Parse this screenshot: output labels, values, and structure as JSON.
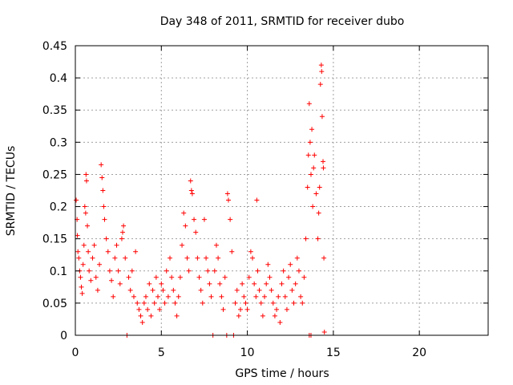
{
  "chart_data": {
    "type": "scatter",
    "title": "Day 348 of 2011, SRMTID for receiver dubo",
    "xlabel": "GPS time / hours",
    "ylabel": "SRMTID / TECUs",
    "xlim": [
      0,
      24
    ],
    "ylim": [
      0,
      0.45
    ],
    "xticks": [
      0,
      5,
      10,
      15,
      20
    ],
    "xtick_labels": [
      "0",
      "5",
      "10",
      "15",
      "20"
    ],
    "yticks": [
      0,
      0.05,
      0.1,
      0.15,
      0.2,
      0.25,
      0.3,
      0.35,
      0.4,
      0.45
    ],
    "ytick_labels": [
      "0",
      "0.05",
      "0.1",
      "0.15",
      "0.2",
      "0.25",
      "0.3",
      "0.35",
      "0.4",
      "0.45"
    ],
    "grid": true,
    "marker": "+",
    "colors": {
      "points": "#ff0000",
      "grid": "#a0a0a0",
      "axes": "#000000"
    },
    "series": [
      {
        "name": "SRMTID",
        "points": [
          [
            0.05,
            0.21
          ],
          [
            0.1,
            0.18
          ],
          [
            0.12,
            0.155
          ],
          [
            0.15,
            0.13
          ],
          [
            0.2,
            0.12
          ],
          [
            0.25,
            0.1
          ],
          [
            0.3,
            0.09
          ],
          [
            0.35,
            0.075
          ],
          [
            0.4,
            0.065
          ],
          [
            0.45,
            0.11
          ],
          [
            0.5,
            0.14
          ],
          [
            0.55,
            0.2
          ],
          [
            0.6,
            0.19
          ],
          [
            0.62,
            0.25
          ],
          [
            0.65,
            0.24
          ],
          [
            0.7,
            0.17
          ],
          [
            0.75,
            0.13
          ],
          [
            0.8,
            0.1
          ],
          [
            0.9,
            0.085
          ],
          [
            1.0,
            0.12
          ],
          [
            1.1,
            0.14
          ],
          [
            1.2,
            0.09
          ],
          [
            1.3,
            0.07
          ],
          [
            1.4,
            0.11
          ],
          [
            1.5,
            0.265
          ],
          [
            1.55,
            0.245
          ],
          [
            1.6,
            0.225
          ],
          [
            1.65,
            0.2
          ],
          [
            1.7,
            0.18
          ],
          [
            1.8,
            0.15
          ],
          [
            1.9,
            0.13
          ],
          [
            2.0,
            0.1
          ],
          [
            2.1,
            0.085
          ],
          [
            2.2,
            0.06
          ],
          [
            2.3,
            0.12
          ],
          [
            2.4,
            0.14
          ],
          [
            2.5,
            0.1
          ],
          [
            2.6,
            0.08
          ],
          [
            2.7,
            0.15
          ],
          [
            2.75,
            0.16
          ],
          [
            2.8,
            0.17
          ],
          [
            2.9,
            0.12
          ],
          [
            3.0,
            0.0
          ],
          [
            3.1,
            0.09
          ],
          [
            3.2,
            0.07
          ],
          [
            3.3,
            0.1
          ],
          [
            3.4,
            0.06
          ],
          [
            3.5,
            0.13
          ],
          [
            3.6,
            0.05
          ],
          [
            3.7,
            0.04
          ],
          [
            3.8,
            0.03
          ],
          [
            3.9,
            0.02
          ],
          [
            4.0,
            0.05
          ],
          [
            4.1,
            0.06
          ],
          [
            4.2,
            0.04
          ],
          [
            4.3,
            0.08
          ],
          [
            4.4,
            0.03
          ],
          [
            4.5,
            0.07
          ],
          [
            4.6,
            0.05
          ],
          [
            4.7,
            0.09
          ],
          [
            4.8,
            0.06
          ],
          [
            4.9,
            0.04
          ],
          [
            5.0,
            0.08
          ],
          [
            5.1,
            0.07
          ],
          [
            5.2,
            0.05
          ],
          [
            5.3,
            0.1
          ],
          [
            5.4,
            0.06
          ],
          [
            5.5,
            0.12
          ],
          [
            5.6,
            0.09
          ],
          [
            5.7,
            0.07
          ],
          [
            5.8,
            0.05
          ],
          [
            5.9,
            0.03
          ],
          [
            6.0,
            0.06
          ],
          [
            6.1,
            0.09
          ],
          [
            6.2,
            0.14
          ],
          [
            6.3,
            0.19
          ],
          [
            6.4,
            0.17
          ],
          [
            6.5,
            0.12
          ],
          [
            6.6,
            0.1
          ],
          [
            6.7,
            0.24
          ],
          [
            6.75,
            0.225
          ],
          [
            6.8,
            0.22
          ],
          [
            6.9,
            0.18
          ],
          [
            7.0,
            0.16
          ],
          [
            7.1,
            0.12
          ],
          [
            7.2,
            0.09
          ],
          [
            7.3,
            0.07
          ],
          [
            7.4,
            0.05
          ],
          [
            7.5,
            0.18
          ],
          [
            7.6,
            0.12
          ],
          [
            7.7,
            0.1
          ],
          [
            7.8,
            0.08
          ],
          [
            7.9,
            0.06
          ],
          [
            8.0,
            0.0
          ],
          [
            8.1,
            0.1
          ],
          [
            8.2,
            0.14
          ],
          [
            8.3,
            0.12
          ],
          [
            8.4,
            0.08
          ],
          [
            8.5,
            0.06
          ],
          [
            8.6,
            0.04
          ],
          [
            8.7,
            0.09
          ],
          [
            8.8,
            0.0
          ],
          [
            8.85,
            0.22
          ],
          [
            8.9,
            0.21
          ],
          [
            9.0,
            0.18
          ],
          [
            9.1,
            0.13
          ],
          [
            9.2,
            0.0
          ],
          [
            9.3,
            0.05
          ],
          [
            9.4,
            0.07
          ],
          [
            9.5,
            0.03
          ],
          [
            9.6,
            0.04
          ],
          [
            9.7,
            0.08
          ],
          [
            9.8,
            0.06
          ],
          [
            9.9,
            0.05
          ],
          [
            10.0,
            0.04
          ],
          [
            10.1,
            0.09
          ],
          [
            10.2,
            0.13
          ],
          [
            10.3,
            0.12
          ],
          [
            10.4,
            0.08
          ],
          [
            10.5,
            0.06
          ],
          [
            10.55,
            0.21
          ],
          [
            10.6,
            0.1
          ],
          [
            10.7,
            0.07
          ],
          [
            10.8,
            0.05
          ],
          [
            10.9,
            0.03
          ],
          [
            11.0,
            0.06
          ],
          [
            11.1,
            0.08
          ],
          [
            11.2,
            0.11
          ],
          [
            11.3,
            0.09
          ],
          [
            11.4,
            0.07
          ],
          [
            11.5,
            0.05
          ],
          [
            11.6,
            0.03
          ],
          [
            11.7,
            0.04
          ],
          [
            11.8,
            0.06
          ],
          [
            11.9,
            0.02
          ],
          [
            12.0,
            0.08
          ],
          [
            12.1,
            0.1
          ],
          [
            12.2,
            0.06
          ],
          [
            12.3,
            0.04
          ],
          [
            12.4,
            0.09
          ],
          [
            12.5,
            0.11
          ],
          [
            12.6,
            0.07
          ],
          [
            12.7,
            0.05
          ],
          [
            12.8,
            0.08
          ],
          [
            12.9,
            0.12
          ],
          [
            13.0,
            0.1
          ],
          [
            13.1,
            0.06
          ],
          [
            13.2,
            0.05
          ],
          [
            13.3,
            0.09
          ],
          [
            13.4,
            0.15
          ],
          [
            13.5,
            0.23
          ],
          [
            13.55,
            0.28
          ],
          [
            13.6,
            0.36
          ],
          [
            13.65,
            0.3
          ],
          [
            13.7,
            0.25
          ],
          [
            13.75,
            0.32
          ],
          [
            13.8,
            0.2
          ],
          [
            13.85,
            0.26
          ],
          [
            13.9,
            0.28
          ],
          [
            14.0,
            0.22
          ],
          [
            14.1,
            0.15
          ],
          [
            14.15,
            0.19
          ],
          [
            14.2,
            0.23
          ],
          [
            14.25,
            0.39
          ],
          [
            14.3,
            0.42
          ],
          [
            14.32,
            0.41
          ],
          [
            14.35,
            0.34
          ],
          [
            14.4,
            0.27
          ],
          [
            14.42,
            0.26
          ],
          [
            14.45,
            0.12
          ],
          [
            14.48,
            0.005
          ],
          [
            13.6,
            0.0
          ],
          [
            13.7,
            0.0
          ]
        ]
      }
    ]
  }
}
